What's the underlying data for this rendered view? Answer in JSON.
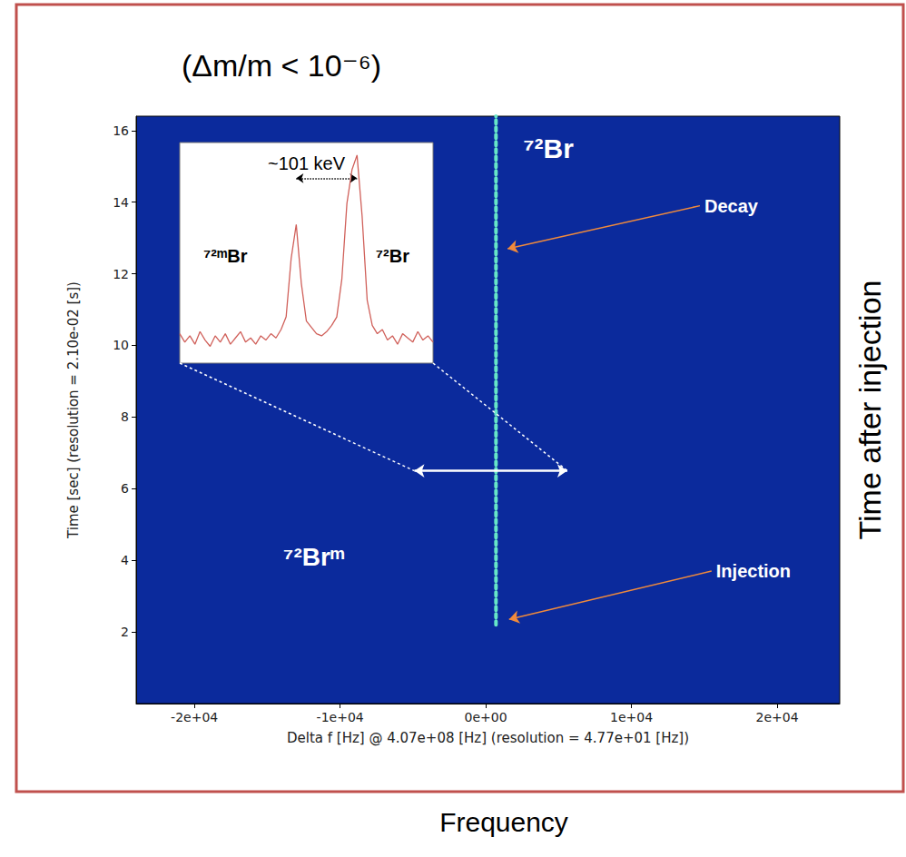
{
  "chart_data": [
    {
      "type": "spectrogram",
      "title": "(Δm/m < 10⁻⁶)",
      "xlabel": "Delta f [Hz] @ 4.07e+08 [Hz] (resolution = 4.77e+01 [Hz])",
      "ylabel": "Time [sec] (resolution = 2.10e-02 [s])",
      "outer_labels": {
        "bottom": "Frequency",
        "right": "Time after injection"
      },
      "xlim": [
        -24000,
        24300
      ],
      "xticks": [
        {
          "value": -20000,
          "label": "-2e+04"
        },
        {
          "value": -10000,
          "label": "-1e+04"
        },
        {
          "value": 0,
          "label": "0e+00"
        },
        {
          "value": 10000,
          "label": "1e+04"
        },
        {
          "value": 20000,
          "label": "2e+04"
        }
      ],
      "ylim": [
        0,
        16.4
      ],
      "yticks": [
        2,
        4,
        6,
        8,
        10,
        12,
        14,
        16
      ],
      "grid": false,
      "series": [
        {
          "x": [
            700,
            700
          ],
          "y": [
            2.2,
            16.4
          ],
          "color": "#66e6c8",
          "line_style": "dotted"
        }
      ],
      "region_labels": [
        {
          "text": "⁷²Br",
          "at": [
            4300,
            15.5
          ]
        },
        {
          "text": "⁷²Brᵐ",
          "at": [
            -11800,
            4.1
          ]
        }
      ],
      "annotations": [
        {
          "text": "Decay",
          "label_at": [
            14700,
            13.9
          ],
          "points_to": [
            1500,
            12.7
          ]
        },
        {
          "text": "Injection",
          "label_at": [
            15500,
            3.7
          ],
          "points_to": [
            1600,
            2.35
          ]
        }
      ],
      "zoom": {
        "x": [
          -4900,
          5600
        ],
        "y": 6.5
      }
    },
    {
      "type": "line",
      "x": [
        0,
        2,
        4,
        6,
        8,
        10,
        12,
        14,
        16,
        18,
        20,
        22,
        24,
        26,
        28,
        30,
        32,
        34,
        36,
        38,
        40,
        42,
        44,
        46,
        48,
        50,
        52,
        54,
        56,
        58,
        60,
        62,
        64,
        66,
        68,
        70,
        72,
        74,
        76,
        78,
        80,
        82,
        84,
        86,
        88,
        90,
        92,
        94,
        96,
        98,
        100
      ],
      "values": [
        14,
        10,
        13,
        9,
        15,
        11,
        8,
        13,
        10,
        14,
        9,
        12,
        15,
        10,
        12,
        9,
        13,
        11,
        14,
        12,
        16,
        22,
        50,
        66,
        38,
        20,
        17,
        14,
        13,
        15,
        18,
        22,
        40,
        76,
        92,
        99,
        70,
        30,
        18,
        14,
        16,
        11,
        13,
        9,
        14,
        12,
        10,
        15,
        11,
        13,
        10
      ],
      "color": "#d0605a",
      "xlim": [
        0,
        100
      ],
      "ylim": [
        0,
        105
      ],
      "tick_labels": false,
      "grid": false,
      "span": {
        "x": [
          46,
          70
        ],
        "y": 88,
        "label": "~101 keV",
        "label_at": [
          50,
          95
        ]
      },
      "region_labels": [
        {
          "text": "⁷²ᵐBr",
          "at": [
            18,
            51
          ]
        },
        {
          "text": "⁷²Br",
          "at": [
            84,
            51
          ]
        }
      ]
    }
  ]
}
